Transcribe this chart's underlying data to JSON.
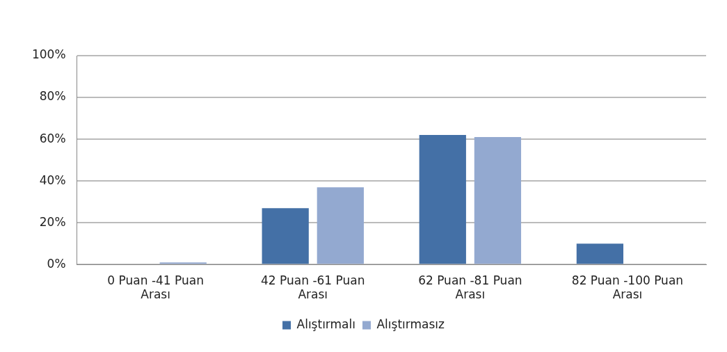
{
  "chart_data": {
    "type": "bar",
    "categories": [
      "0 Puan -41 Puan Arası",
      "42 Puan -61 Puan Arası",
      "62 Puan -81 Puan Arası",
      "82 Puan -100 Puan Arası"
    ],
    "series": [
      {
        "name": "Alıştırmalı",
        "color": "#4470a6",
        "values": [
          0,
          27,
          62,
          10
        ]
      },
      {
        "name": "Alıştırmasız",
        "color": "#93a9d0",
        "values": [
          1,
          37,
          61,
          0
        ]
      }
    ],
    "ylim": [
      0,
      100
    ],
    "yticks": [
      {
        "value": 0,
        "label": "0%"
      },
      {
        "value": 20,
        "label": "20%"
      },
      {
        "value": 40,
        "label": "40%"
      },
      {
        "value": 60,
        "label": "60%"
      },
      {
        "value": 80,
        "label": "80%"
      },
      {
        "value": 100,
        "label": "100%"
      }
    ],
    "grid": "y",
    "legend": "bottom"
  }
}
